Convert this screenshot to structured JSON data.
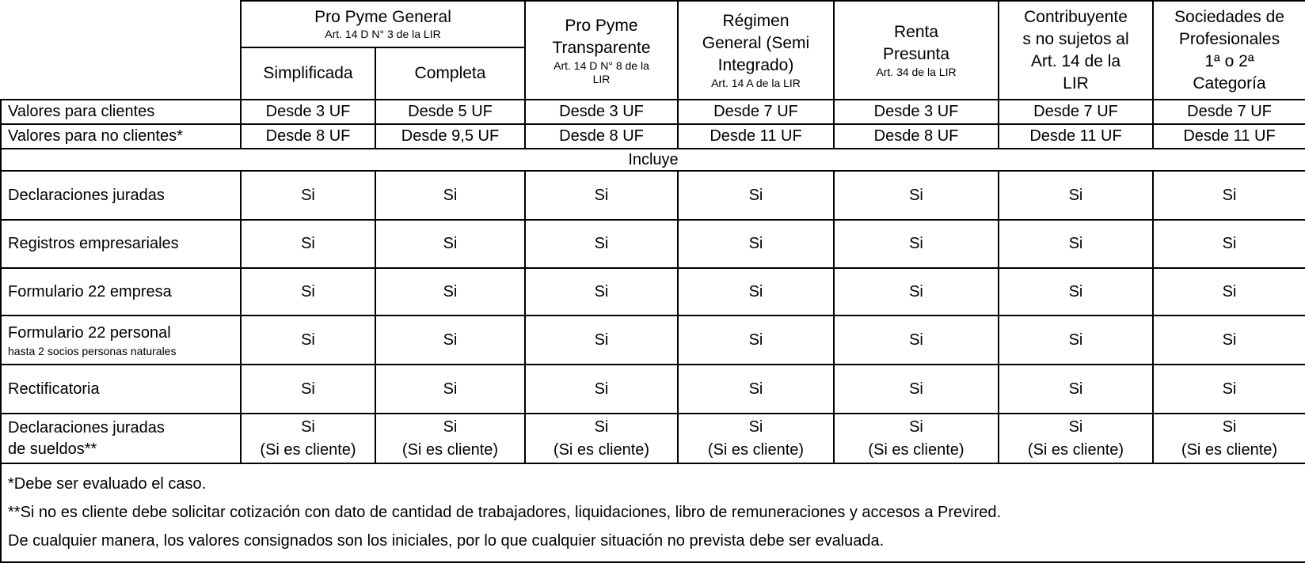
{
  "table": {
    "header": {
      "group": {
        "title": "Pro Pyme General",
        "subtitle": "Art. 14 D N° 3 de la LIR",
        "children": [
          "Simplificada",
          "Completa"
        ]
      },
      "columns": [
        {
          "title": "Pro Pyme\nTransparente",
          "subtitle": "Art. 14 D N° 8 de la\nLIR"
        },
        {
          "title": "Régimen\nGeneral (Semi\nIntegrado)",
          "subtitle": "Art. 14 A de la LIR"
        },
        {
          "title": "Renta\nPresunta",
          "subtitle": "Art. 34 de la LIR"
        },
        {
          "title": "Contribuyente\ns no sujetos al\nArt. 14 de la\nLIR",
          "subtitle": ""
        },
        {
          "title": "Sociedades de\nProfesionales\n1ª o 2ª\nCategoría",
          "subtitle": ""
        }
      ]
    },
    "price_rows": [
      {
        "label": "Valores para clientes",
        "values": [
          "Desde 3 UF",
          "Desde 5 UF",
          "Desde 3 UF",
          "Desde 7 UF",
          "Desde 3 UF",
          "Desde 7 UF",
          "Desde 7 UF"
        ]
      },
      {
        "label": "Valores para no clientes*",
        "values": [
          "Desde 8 UF",
          "Desde 9,5 UF",
          "Desde 8 UF",
          "Desde 11 UF",
          "Desde 8 UF",
          "Desde 11 UF",
          "Desde 11 UF"
        ]
      }
    ],
    "section_label": "Incluye",
    "feature_rows": [
      {
        "label": "Declaraciones juradas",
        "sublabel": "",
        "values": [
          "Si",
          "Si",
          "Si",
          "Si",
          "Si",
          "Si",
          "Si"
        ]
      },
      {
        "label": "Registros empresariales",
        "sublabel": "",
        "values": [
          "Si",
          "Si",
          "Si",
          "Si",
          "Si",
          "Si",
          "Si"
        ]
      },
      {
        "label": "Formulario 22 empresa",
        "sublabel": "",
        "values": [
          "Si",
          "Si",
          "Si",
          "Si",
          "Si",
          "Si",
          "Si"
        ]
      },
      {
        "label": "Formulario 22 personal",
        "sublabel": "hasta 2 socios personas naturales",
        "values": [
          "Si",
          "Si",
          "Si",
          "Si",
          "Si",
          "Si",
          "Si"
        ]
      },
      {
        "label": "Rectificatoria",
        "sublabel": "",
        "values": [
          "Si",
          "Si",
          "Si",
          "Si",
          "Si",
          "Si",
          "Si"
        ]
      },
      {
        "label": "Declaraciones juradas\nde sueldos**",
        "sublabel": "",
        "values": [
          "Si\n(Si es cliente)",
          "Si\n(Si es cliente)",
          "Si\n(Si es cliente)",
          "Si\n(Si es cliente)",
          "Si\n(Si es cliente)",
          "Si\n(Si es cliente)",
          "Si\n(Si es cliente)"
        ]
      }
    ],
    "footnotes": [
      "*Debe ser evaluado el caso.",
      "**Si no es cliente debe solicitar cotización con dato de cantidad de trabajadores, liquidaciones, libro de remuneraciones y accesos a Previred.",
      "De cualquier manera, los valores consignados son los iniciales, por lo que cualquier situación no prevista debe ser evaluada."
    ]
  }
}
